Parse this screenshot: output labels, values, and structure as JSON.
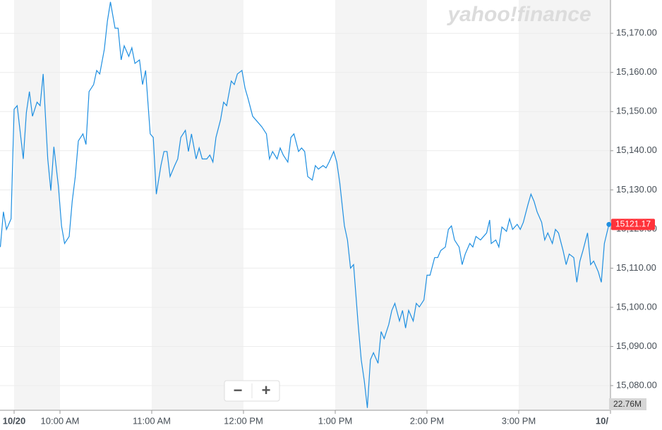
{
  "chart_data": {
    "type": "line",
    "brand": "yahoo!finance",
    "color": "#1e8fe1",
    "x": [
      -9,
      -7,
      -5,
      -2,
      0,
      2,
      6,
      8,
      10,
      12,
      15,
      17,
      19,
      22,
      24,
      26,
      29,
      31,
      33,
      36,
      38,
      40,
      42,
      45,
      47,
      49,
      52,
      54,
      56,
      59,
      61,
      63,
      66,
      68,
      70,
      72,
      75,
      77,
      79,
      82,
      84,
      86,
      89,
      91,
      93,
      96,
      98,
      100,
      102,
      105,
      107,
      109,
      112,
      114,
      116,
      119,
      121,
      123,
      126,
      128,
      130,
      132,
      135,
      137,
      139,
      142,
      144,
      146,
      149,
      151,
      153,
      156,
      158,
      160,
      162,
      165,
      167,
      169,
      172,
      174,
      176,
      179,
      181,
      183,
      186,
      188,
      190,
      192,
      195,
      197,
      199,
      202,
      204,
      206,
      209,
      211,
      213,
      216,
      218,
      220,
      222,
      225,
      227,
      229,
      231,
      233,
      235,
      238,
      240,
      242,
      245,
      247,
      249,
      252,
      254,
      256,
      258,
      261,
      263,
      265,
      268,
      270,
      272,
      275,
      277,
      279,
      282,
      284,
      286,
      288,
      291,
      293,
      295,
      298,
      300,
      302,
      305,
      307,
      309,
      311,
      312,
      315,
      317,
      319,
      322,
      324,
      326,
      329,
      331,
      333,
      336,
      338,
      340,
      342,
      345,
      347,
      349,
      352,
      354,
      356,
      359,
      361,
      363,
      366,
      368,
      370,
      372,
      375,
      377,
      379,
      382,
      384,
      386,
      389
    ],
    "values": [
      15115.4,
      15124.4,
      15119.9,
      15122.6,
      15150.6,
      15151.5,
      15137.9,
      15149.7,
      15155.1,
      15148.8,
      15152.4,
      15151.5,
      15159.6,
      15137.9,
      15129.8,
      15141.0,
      15130.8,
      15120.8,
      15116.3,
      15118.1,
      15127.1,
      15133.4,
      15142.5,
      15144.3,
      15141.6,
      15155.1,
      15156.9,
      15160.5,
      15159.6,
      15165.9,
      15173.1,
      15178.0,
      15171.3,
      15171.3,
      15163.2,
      15166.8,
      15164.1,
      15166.3,
      15162.3,
      15163.2,
      15156.9,
      15160.5,
      15144.3,
      15143.4,
      15128.9,
      15136.2,
      15139.8,
      15139.8,
      15133.4,
      15136.2,
      15137.9,
      15143.4,
      15145.2,
      15139.8,
      15144.3,
      15137.9,
      15140.7,
      15137.9,
      15137.9,
      15138.9,
      15137.1,
      15143.4,
      15147.9,
      15152.4,
      15151.5,
      15157.8,
      15156.9,
      15159.6,
      15160.5,
      15156.0,
      15153.3,
      15148.8,
      15147.9,
      15147.0,
      15146.1,
      15144.3,
      15137.9,
      15139.8,
      15137.9,
      15140.7,
      15138.9,
      15137.1,
      15143.4,
      15144.3,
      15139.8,
      15140.7,
      15139.8,
      15133.4,
      15132.5,
      15136.2,
      15135.3,
      15136.2,
      15135.6,
      15137.1,
      15139.8,
      15137.1,
      15131.7,
      15120.8,
      15117.2,
      15110.0,
      15110.9,
      15095.6,
      15086.6,
      15081.2,
      15074.3,
      15086.6,
      15088.4,
      15085.7,
      15093.8,
      15092.0,
      15095.6,
      15099.2,
      15101.0,
      15096.5,
      15099.2,
      15094.7,
      15099.2,
      15096.5,
      15101.0,
      15100.1,
      15101.9,
      15108.2,
      15108.2,
      15112.7,
      15112.7,
      15114.5,
      15115.4,
      15119.9,
      15120.8,
      15117.2,
      15115.4,
      15110.9,
      15113.6,
      15116.3,
      15115.4,
      15118.1,
      15117.2,
      15118.1,
      15119.0,
      15122.3,
      15116.3,
      15117.2,
      15115.4,
      15120.5,
      15119.4,
      15122.6,
      15119.9,
      15121.2,
      15119.9,
      15121.7,
      15126.2,
      15128.9,
      15127.1,
      15124.4,
      15121.7,
      15117.2,
      15119.0,
      15116.3,
      15119.9,
      15119.0,
      15114.5,
      15110.9,
      15113.6,
      15112.7,
      15106.4,
      15111.8,
      15114.5,
      15119.0,
      15110.9,
      15111.8,
      15109.1,
      15106.4,
      15116.3,
      15121.17
    ],
    "last_price": 15121.17,
    "volume_label": "22.76M",
    "xlim": [
      -9.23,
      390
    ],
    "xticks": [
      {
        "value": 0,
        "label": "10/20"
      },
      {
        "value": 30,
        "label": "10:00 AM"
      },
      {
        "value": 90,
        "label": "11:00 AM"
      },
      {
        "value": 150,
        "label": "12:00 PM"
      },
      {
        "value": 210,
        "label": "1:00 PM"
      },
      {
        "value": 270,
        "label": "2:00 PM"
      },
      {
        "value": 330,
        "label": "3:00 PM"
      },
      {
        "value": 390,
        "label": "10/"
      }
    ],
    "ylim": [
      15073.7,
      15178.5
    ],
    "yticks": [
      {
        "value": 15080,
        "label": "15,080.00"
      },
      {
        "value": 15090,
        "label": "15,090.00"
      },
      {
        "value": 15100,
        "label": "15,100.00"
      },
      {
        "value": 15110,
        "label": "15,110.00"
      },
      {
        "value": 15120,
        "label": "15,120.00"
      },
      {
        "value": 15130,
        "label": "15,130.00"
      },
      {
        "value": 15140,
        "label": "15,140.00"
      },
      {
        "value": 15150,
        "label": "15,150.00"
      },
      {
        "value": 15160,
        "label": "15,160.00"
      },
      {
        "value": 15170,
        "label": "15,170.00"
      }
    ],
    "grid": true,
    "zoom_controls": [
      "−",
      "+"
    ]
  }
}
